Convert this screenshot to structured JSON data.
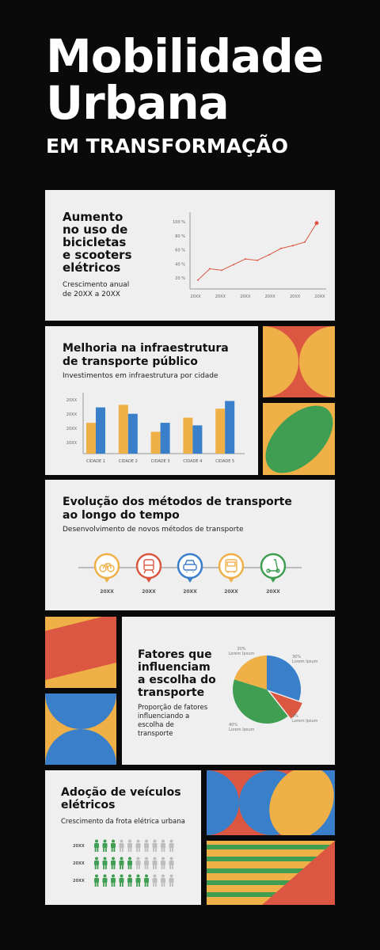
{
  "header": {
    "title_line1": "Mobilidade",
    "title_line2": "Urbana",
    "subtitle": "EM TRANSFORMAÇÃO"
  },
  "colors": {
    "orange": "#f0b048",
    "blue": "#3a7fc9",
    "red": "#dc5742",
    "green": "#3f9e52",
    "card": "#efefef",
    "background": "#0a0a0a"
  },
  "sections": {
    "bikes": {
      "title": "Aumento no uso de bicicletas e scooters elétricos",
      "title_lines": [
        "Aumento",
        "no uso de",
        "bicicletas",
        "e scooters",
        "elétricos"
      ],
      "subtitle_lines": [
        "Crescimento anual",
        "de 20XX a 20XX"
      ]
    },
    "infra": {
      "title_lines": [
        "Melhoria na infraestrutura",
        "de transporte público"
      ],
      "subtitle": "Investimentos em infraestrutura por cidade"
    },
    "evolution": {
      "title_lines": [
        "Evolução dos métodos de transporte",
        "ao longo do tempo"
      ],
      "subtitle": "Desenvolvimento de novos métodos de transporte",
      "milestones": [
        {
          "label": "20XX",
          "icon": "bicycle-icon",
          "color": "#f0b048"
        },
        {
          "label": "20XX",
          "icon": "train-icon",
          "color": "#dc5742"
        },
        {
          "label": "20XX",
          "icon": "car-icon",
          "color": "#3a7fc9"
        },
        {
          "label": "20XX",
          "icon": "bus-icon",
          "color": "#f0b048"
        },
        {
          "label": "20XX",
          "icon": "scooter-icon",
          "color": "#3f9e52"
        }
      ]
    },
    "factors": {
      "title_lines": [
        "Fatores que",
        "influenciam",
        "a escolha do",
        "transporte"
      ],
      "subtitle_lines": [
        "Proporção de fatores",
        "influenciando a",
        "escolha de",
        "transporte"
      ]
    },
    "ev": {
      "title_lines": [
        "Adoção de veículos",
        "elétricos"
      ],
      "subtitle": "Crescimento da frota elétrica urbana",
      "rows": [
        {
          "label": "20XX",
          "filled": 3,
          "total": 10
        },
        {
          "label": "20XX",
          "filled": 5,
          "total": 10
        },
        {
          "label": "20XX",
          "filled": 7,
          "total": 10
        }
      ]
    }
  },
  "chart_data": [
    {
      "type": "line",
      "x": [
        "20XX",
        "",
        "20XX",
        "",
        "20XX",
        "",
        "20XX",
        "",
        "20XX",
        "",
        "20XX"
      ],
      "x_ticks": [
        "20XX",
        "20XX",
        "20XX",
        "20XX",
        "20XX",
        "20XX"
      ],
      "y_ticks": [
        "20 %",
        "40 %",
        "60 %",
        "80 %",
        "100 %"
      ],
      "values": [
        17,
        33,
        31,
        39,
        47,
        45,
        53,
        62,
        66,
        71,
        98
      ],
      "ylim": [
        10,
        100
      ]
    },
    {
      "type": "bar",
      "categories": [
        "CIDADE 1",
        "CIDADE 2",
        "CIDADE 3",
        "CIDADE 4",
        "CIDADE 5"
      ],
      "y_ticks": [
        "20XX",
        "20XX",
        "20XX",
        "20XX"
      ],
      "series": [
        {
          "color": "#f0b048",
          "values": [
            2.4,
            3.8,
            1.7,
            2.8,
            3.5
          ]
        },
        {
          "color": "#3a7fc9",
          "values": [
            3.6,
            3.1,
            2.4,
            2.2,
            4.1
          ]
        }
      ],
      "ylim": [
        0,
        4.5
      ]
    },
    {
      "type": "pie",
      "slices": [
        {
          "label": "30%",
          "sublabel": "Lorem Ipsum",
          "value": 30,
          "color": "#3a7fc9"
        },
        {
          "label": "9%",
          "sublabel": "Lorem Ipsum",
          "value": 9,
          "color": "#dc5742"
        },
        {
          "label": "40%",
          "sublabel": "Lorem Ipsum",
          "value": 40,
          "color": "#3f9e52"
        },
        {
          "label": "20%",
          "sublabel": "Lorem Ipsum",
          "value": 20,
          "color": "#f0b048"
        }
      ]
    }
  ]
}
